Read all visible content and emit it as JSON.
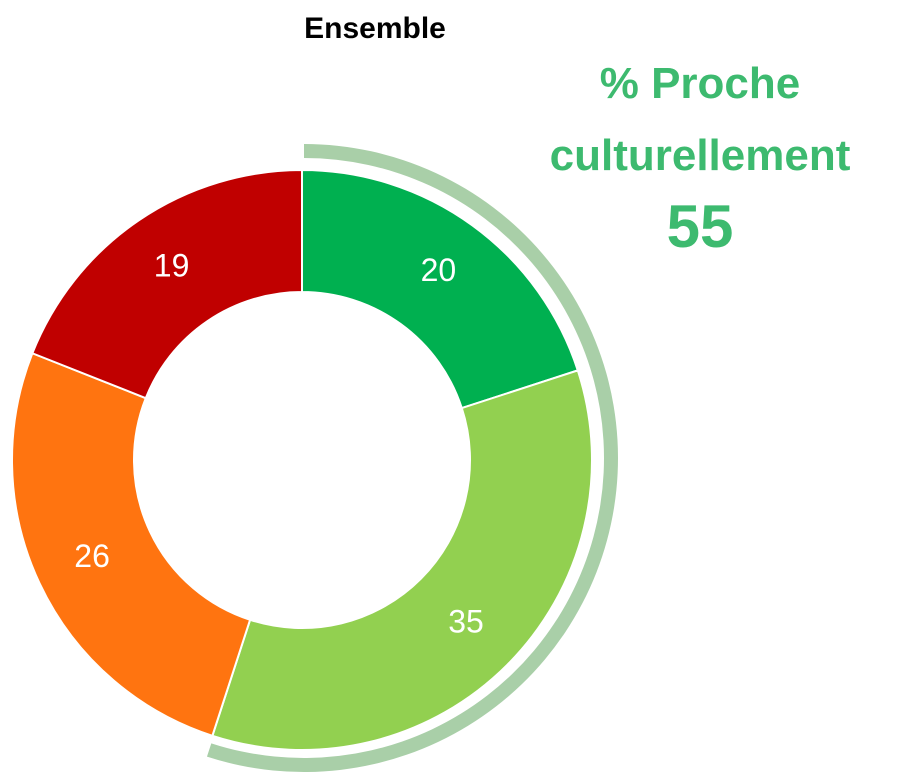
{
  "chart_data": {
    "type": "donut",
    "title": "Ensemble",
    "categories": [
      null,
      null,
      null,
      null
    ],
    "values": [
      20,
      35,
      26,
      19
    ],
    "colors": [
      "#00b050",
      "#92d050",
      "#ff7410",
      "#c00000"
    ],
    "annotation": {
      "label": "% Proche culturellement",
      "value": 55,
      "color": "#3dba6f",
      "highlight_color": "#a9cfa8"
    }
  }
}
